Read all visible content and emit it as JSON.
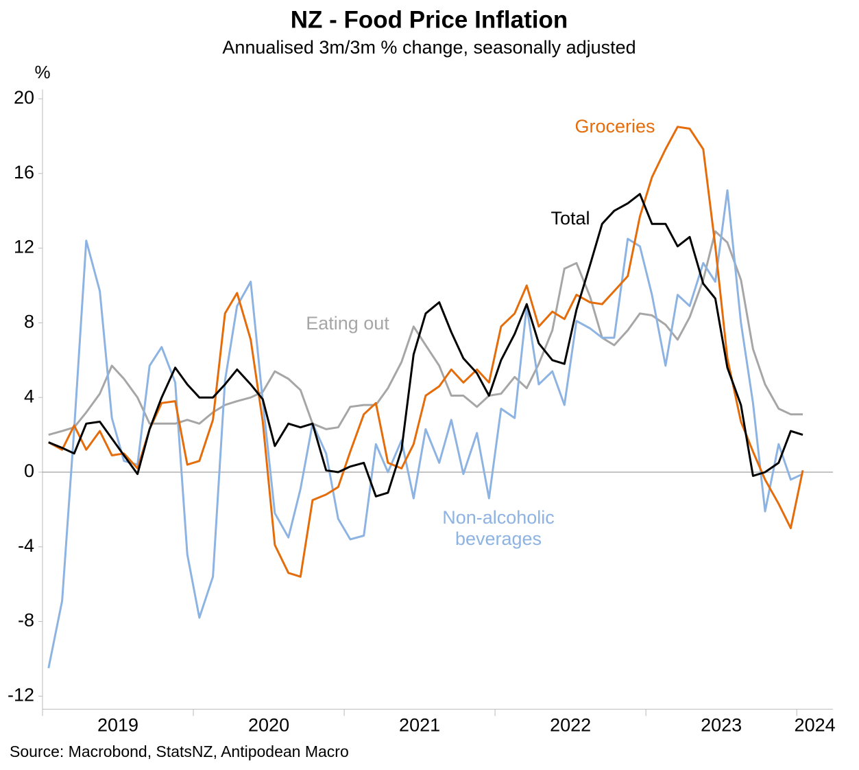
{
  "chart_data": {
    "type": "line",
    "title": "NZ - Food Price Inflation",
    "subtitle": "Annualised 3m/3m % change, seasonally adjusted",
    "y_label": "%",
    "source": "Source: Macrobond, StatsNZ, Antipodean Macro",
    "x": [
      2019.04,
      2019.13,
      2019.21,
      2019.29,
      2019.38,
      2019.46,
      2019.54,
      2019.63,
      2019.71,
      2019.79,
      2019.88,
      2019.96,
      2020.04,
      2020.13,
      2020.21,
      2020.29,
      2020.38,
      2020.46,
      2020.54,
      2020.63,
      2020.71,
      2020.79,
      2020.88,
      2020.96,
      2021.04,
      2021.13,
      2021.21,
      2021.29,
      2021.38,
      2021.46,
      2021.54,
      2021.63,
      2021.71,
      2021.79,
      2021.88,
      2021.96,
      2022.04,
      2022.13,
      2022.21,
      2022.29,
      2022.38,
      2022.46,
      2022.54,
      2022.63,
      2022.71,
      2022.79,
      2022.88,
      2022.96,
      2023.04,
      2023.13,
      2023.21,
      2023.29,
      2023.38,
      2023.46,
      2023.54,
      2023.63,
      2023.71,
      2023.79,
      2023.88,
      2023.96,
      2024.04
    ],
    "xlim": [
      2019,
      2024.24
    ],
    "xticks": [
      2019,
      2020,
      2021,
      2022,
      2023,
      2024
    ],
    "ylim": [
      -12.7,
      20.5
    ],
    "yticks": [
      -12,
      -8,
      -4,
      0,
      4,
      8,
      12,
      16,
      20
    ],
    "series": [
      {
        "name": "Eating out",
        "color": "#a6a6a6",
        "values": [
          2.0,
          2.2,
          2.4,
          3.2,
          4.2,
          5.7,
          5.0,
          4.0,
          2.6,
          2.6,
          2.6,
          2.8,
          2.6,
          3.2,
          3.6,
          3.8,
          4.0,
          4.3,
          5.4,
          5.0,
          4.4,
          2.6,
          2.3,
          2.4,
          3.5,
          3.6,
          3.6,
          4.5,
          5.9,
          7.8,
          6.8,
          5.7,
          4.1,
          4.1,
          3.5,
          4.1,
          4.2,
          5.1,
          4.5,
          5.8,
          7.6,
          10.9,
          11.2,
          9.4,
          7.2,
          6.8,
          7.6,
          8.5,
          8.4,
          7.9,
          7.1,
          8.3,
          10.3,
          12.9,
          12.3,
          10.3,
          6.6,
          4.7,
          3.4,
          3.1,
          3.1
        ]
      },
      {
        "name": "Non-alcoholic beverages",
        "color": "#8db3e2",
        "values": [
          -10.5,
          -6.9,
          2.3,
          12.4,
          9.7,
          2.9,
          0.6,
          0.4,
          5.7,
          6.7,
          4.8,
          -4.4,
          -7.8,
          -5.6,
          4.9,
          8.9,
          10.2,
          3.8,
          -2.2,
          -3.5,
          -0.9,
          2.6,
          1.0,
          -2.5,
          -3.6,
          -3.4,
          1.5,
          0.0,
          1.7,
          -1.4,
          2.3,
          0.5,
          2.8,
          -0.1,
          2.1,
          -1.4,
          3.4,
          2.9,
          8.9,
          4.7,
          5.4,
          3.6,
          8.1,
          7.7,
          7.2,
          7.2,
          12.5,
          12.1,
          9.5,
          5.7,
          9.5,
          8.9,
          11.2,
          10.2,
          15.1,
          8.0,
          3.7,
          -2.1,
          1.5,
          -0.4,
          -0.1
        ]
      },
      {
        "name": "Groceries",
        "color": "#e46c0a",
        "values": [
          1.6,
          1.2,
          2.5,
          1.2,
          2.2,
          0.9,
          1.0,
          0.2,
          2.3,
          3.7,
          3.8,
          0.4,
          0.6,
          2.8,
          8.5,
          9.6,
          7.1,
          2.7,
          -3.9,
          -5.4,
          -5.6,
          -1.5,
          -1.2,
          -0.8,
          1.1,
          3.1,
          3.7,
          0.5,
          0.2,
          1.5,
          4.1,
          4.6,
          5.5,
          4.8,
          5.5,
          4.8,
          7.8,
          8.5,
          10.0,
          7.8,
          8.6,
          8.2,
          9.5,
          9.1,
          9.0,
          9.7,
          10.5,
          13.7,
          15.8,
          17.3,
          18.5,
          18.4,
          17.3,
          12.1,
          6.1,
          2.7,
          1.1,
          -0.4,
          -1.7,
          -3.0,
          0.1
        ]
      },
      {
        "name": "Total",
        "color": "#000000",
        "values": [
          1.6,
          1.3,
          1.0,
          2.6,
          2.7,
          1.8,
          0.9,
          -0.1,
          2.3,
          4.0,
          5.6,
          4.7,
          4.0,
          4.0,
          4.7,
          5.5,
          4.7,
          3.9,
          1.4,
          2.6,
          2.4,
          2.6,
          0.1,
          0.0,
          0.3,
          0.5,
          -1.3,
          -1.1,
          1.2,
          6.3,
          8.5,
          9.1,
          7.5,
          6.1,
          5.3,
          4.1,
          6.0,
          7.4,
          9.0,
          6.9,
          6.0,
          5.8,
          8.7,
          11.1,
          13.3,
          14.0,
          14.4,
          14.9,
          13.3,
          13.3,
          12.1,
          12.6,
          10.1,
          9.3,
          5.6,
          3.6,
          -0.2,
          0.0,
          0.5,
          2.2,
          2.0
        ]
      }
    ]
  }
}
